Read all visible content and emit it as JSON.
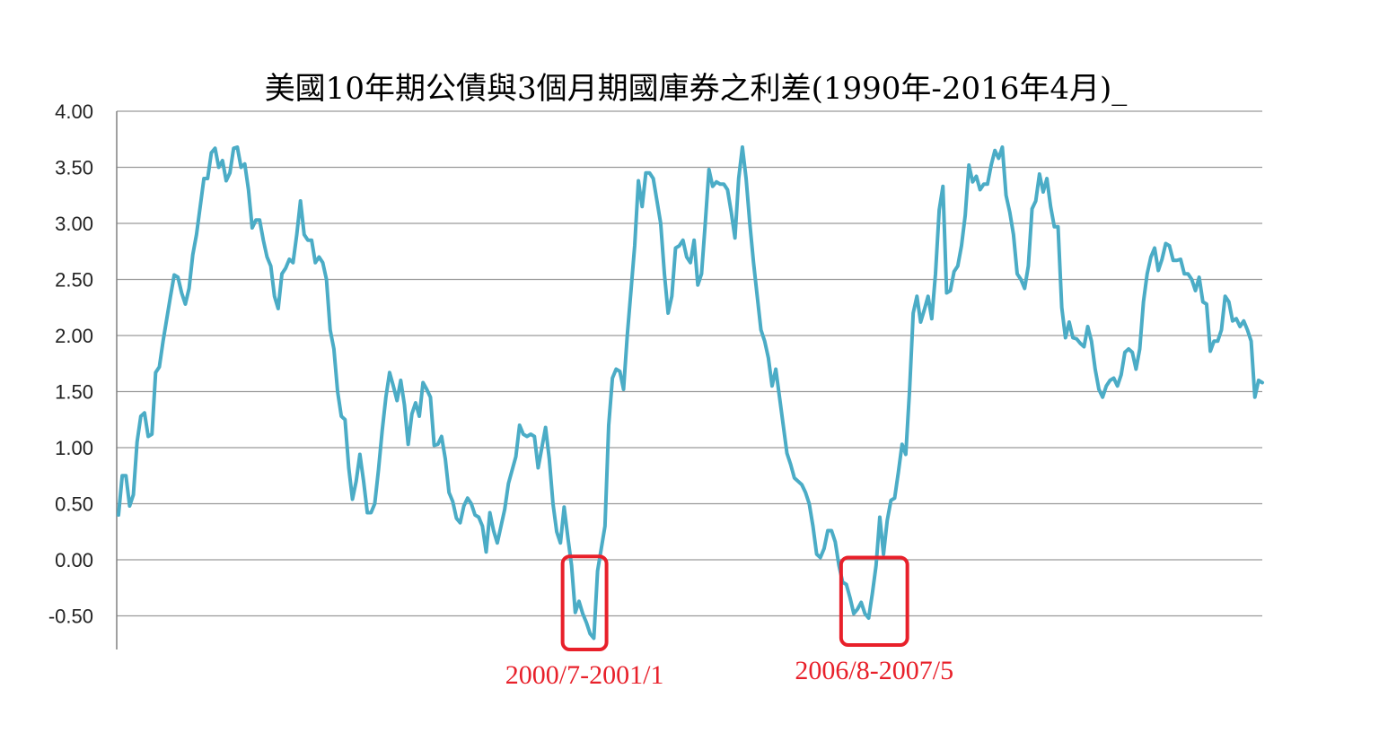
{
  "chart_data": {
    "type": "line",
    "title": "美國10年期公債與3個月期國庫券之利差(1990年-2016年4月)_",
    "xlabel": "",
    "ylabel": "",
    "ylim": [
      -0.8,
      4.0
    ],
    "yticks": [
      "4.00",
      "3.50",
      "3.00",
      "2.50",
      "2.00",
      "1.50",
      "1.00",
      "0.50",
      "0.00",
      "-0.50"
    ],
    "ytick_values": [
      4.0,
      3.5,
      3.0,
      2.5,
      2.0,
      1.5,
      1.0,
      0.5,
      0.0,
      -0.5
    ],
    "grid": true,
    "legend": "none",
    "series": [
      {
        "color": "#4bacc6",
        "values": [
          0.4,
          0.75,
          0.75,
          0.48,
          0.58,
          1.05,
          1.28,
          1.31,
          1.1,
          1.12,
          1.67,
          1.72,
          1.95,
          2.15,
          2.35,
          2.54,
          2.52,
          2.38,
          2.28,
          2.42,
          2.72,
          2.9,
          3.15,
          3.4,
          3.4,
          3.63,
          3.67,
          3.5,
          3.56,
          3.38,
          3.45,
          3.67,
          3.68,
          3.5,
          3.53,
          3.3,
          2.96,
          3.03,
          3.03,
          2.85,
          2.7,
          2.62,
          2.35,
          2.24,
          2.55,
          2.6,
          2.68,
          2.65,
          2.9,
          3.2,
          2.9,
          2.85,
          2.85,
          2.65,
          2.7,
          2.65,
          2.5,
          2.05,
          1.88,
          1.5,
          1.28,
          1.25,
          0.82,
          0.54,
          0.7,
          0.94,
          0.7,
          0.42,
          0.42,
          0.5,
          0.8,
          1.15,
          1.45,
          1.67,
          1.55,
          1.42,
          1.6,
          1.38,
          1.03,
          1.3,
          1.4,
          1.28,
          1.58,
          1.52,
          1.45,
          1.02,
          1.03,
          1.1,
          0.9,
          0.6,
          0.52,
          0.37,
          0.33,
          0.48,
          0.55,
          0.5,
          0.4,
          0.38,
          0.3,
          0.07,
          0.42,
          0.26,
          0.15,
          0.3,
          0.45,
          0.68,
          0.8,
          0.92,
          1.2,
          1.12,
          1.1,
          1.12,
          1.1,
          0.82,
          1.0,
          1.18,
          0.9,
          0.5,
          0.25,
          0.15,
          0.47,
          0.2,
          -0.05,
          -0.47,
          -0.37,
          -0.48,
          -0.56,
          -0.66,
          -0.7,
          -0.1,
          0.1,
          0.3,
          1.2,
          1.62,
          1.7,
          1.68,
          1.52,
          2.0,
          2.4,
          2.8,
          3.38,
          3.15,
          3.45,
          3.45,
          3.4,
          3.2,
          3.0,
          2.55,
          2.2,
          2.35,
          2.78,
          2.8,
          2.85,
          2.7,
          2.65,
          2.85,
          2.45,
          2.55,
          3.0,
          3.48,
          3.33,
          3.37,
          3.35,
          3.35,
          3.3,
          3.1,
          2.87,
          3.4,
          3.68,
          3.4,
          3.0,
          2.65,
          2.35,
          2.05,
          1.95,
          1.8,
          1.55,
          1.7,
          1.45,
          1.2,
          0.95,
          0.85,
          0.73,
          0.7,
          0.67,
          0.6,
          0.5,
          0.3,
          0.05,
          0.02,
          0.1,
          0.26,
          0.26,
          0.16,
          -0.05,
          -0.2,
          -0.22,
          -0.34,
          -0.48,
          -0.44,
          -0.38,
          -0.48,
          -0.52,
          -0.3,
          -0.05,
          0.38,
          0.05,
          0.35,
          0.53,
          0.55,
          0.78,
          1.03,
          0.94,
          1.5,
          2.2,
          2.35,
          2.12,
          2.23,
          2.35,
          2.15,
          2.55,
          3.12,
          3.33,
          2.38,
          2.4,
          2.57,
          2.62,
          2.8,
          3.07,
          3.52,
          3.37,
          3.42,
          3.3,
          3.35,
          3.35,
          3.52,
          3.65,
          3.58,
          3.68,
          3.25,
          3.1,
          2.9,
          2.55,
          2.5,
          2.42,
          2.62,
          3.13,
          3.2,
          3.44,
          3.28,
          3.4,
          3.15,
          2.97,
          2.97,
          2.25,
          1.98,
          2.12,
          1.98,
          1.97,
          1.93,
          1.9,
          2.08,
          1.95,
          1.7,
          1.52,
          1.45,
          1.55,
          1.6,
          1.62,
          1.55,
          1.65,
          1.85,
          1.88,
          1.85,
          1.7,
          1.88,
          2.3,
          2.55,
          2.7,
          2.78,
          2.58,
          2.68,
          2.82,
          2.8,
          2.67,
          2.67,
          2.68,
          2.55,
          2.55,
          2.5,
          2.4,
          2.52,
          2.3,
          2.28,
          1.86,
          1.95,
          1.95,
          2.05,
          2.35,
          2.3,
          2.13,
          2.15,
          2.08,
          2.13,
          2.05,
          1.95,
          1.45,
          1.6,
          1.58
        ]
      }
    ],
    "annotations": [
      {
        "text": "2000/7-2001/1",
        "color": "#e8202a",
        "index_range": [
          122,
          129
        ],
        "y_range": [
          -0.8,
          0.03
        ]
      },
      {
        "text": "2006/8-2007/5",
        "color": "#e8202a",
        "index_range": [
          197,
          210
        ],
        "y_range": [
          -0.76,
          0.02
        ]
      }
    ]
  }
}
